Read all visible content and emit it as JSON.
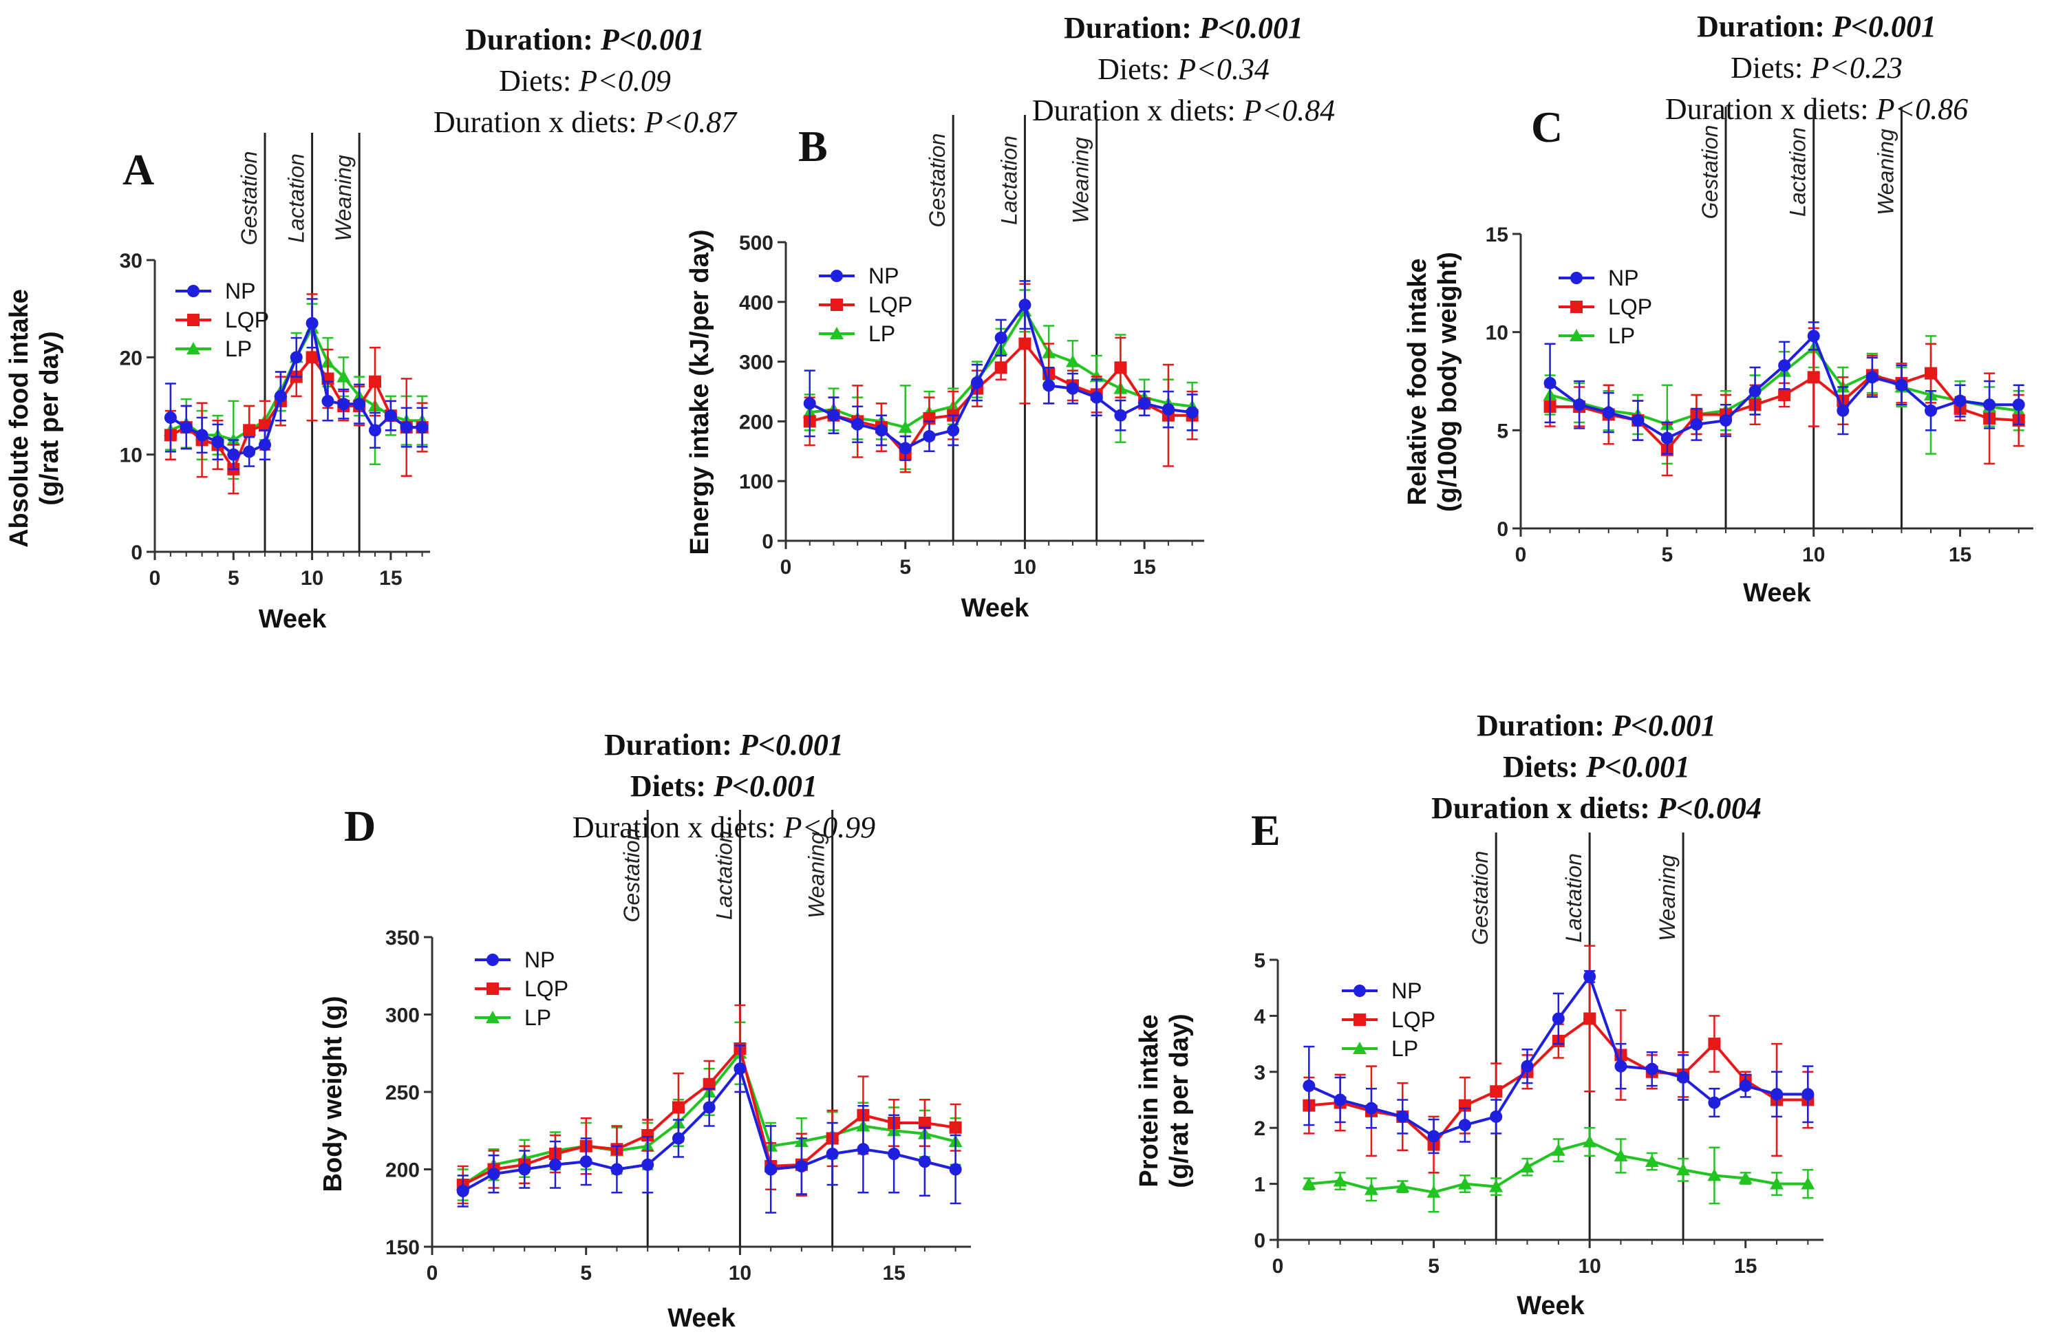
{
  "chart_data": [
    {
      "panel": "A",
      "type": "line",
      "stats": [
        {
          "label": "Duration: ",
          "value": "P<0.001",
          "bold": true
        },
        {
          "label": "Diets: ",
          "value": "P<0.09",
          "bold": false
        },
        {
          "label": "Duration x diets: ",
          "value": "P<0.87",
          "bold": false
        }
      ],
      "ylabel": [
        "Absolute food intake",
        "(g/rat per day)"
      ],
      "xlabel": "Week",
      "xlim": [
        0,
        17.5
      ],
      "ylim": [
        0,
        30
      ],
      "xticks": [
        0,
        5,
        10,
        15
      ],
      "yticks": [
        0,
        10,
        20,
        30
      ],
      "phases": [
        {
          "week": 7,
          "label": "Gestation"
        },
        {
          "week": 10,
          "label": "Lactation"
        },
        {
          "week": 13,
          "label": "Weaning"
        }
      ],
      "x": [
        1,
        2,
        3,
        4,
        5,
        6,
        7,
        8,
        9,
        10,
        11,
        12,
        13,
        14,
        15,
        16,
        17
      ],
      "series": [
        {
          "name": "NP",
          "color": "#1f1fe0",
          "marker": "circle",
          "values": [
            13.8,
            12.8,
            12,
            11.3,
            10,
            10.3,
            11,
            16,
            20,
            23.5,
            15.5,
            15.2,
            15.2,
            12.5,
            14,
            12.8,
            12.8
          ],
          "errors": [
            3.5,
            2.2,
            1.8,
            1.8,
            1.5,
            1.5,
            1.5,
            2.5,
            2,
            2.5,
            2,
            1.5,
            2,
            1.8,
            1.5,
            2,
            2
          ]
        },
        {
          "name": "LQP",
          "color": "#e81818",
          "marker": "square",
          "values": [
            12,
            12.8,
            11.5,
            11,
            8.5,
            12.5,
            13,
            15.5,
            18,
            20,
            17.8,
            15,
            15,
            17.5,
            14,
            12.8,
            12.8
          ],
          "errors": [
            2.5,
            2.2,
            3.8,
            2.5,
            2.5,
            2.5,
            2.5,
            2.5,
            2,
            6.5,
            3,
            1.5,
            2,
            3.5,
            1.5,
            5,
            2.5
          ]
        },
        {
          "name": "LP",
          "color": "#22c422",
          "marker": "triangle",
          "values": [
            12.5,
            13.2,
            12,
            12,
            11.5,
            12.5,
            13.5,
            16.5,
            20,
            23,
            19.5,
            18,
            16,
            15,
            14,
            13.5,
            13.5
          ],
          "errors": [
            2,
            2.5,
            2.5,
            2,
            4,
            2.5,
            2,
            2,
            2.5,
            2.5,
            2.5,
            2,
            2,
            6,
            2,
            2.5,
            2.5
          ]
        }
      ]
    },
    {
      "panel": "B",
      "type": "line",
      "stats": [
        {
          "label": "Duration: ",
          "value": "P<0.001",
          "bold": true
        },
        {
          "label": "Diets: ",
          "value": "P<0.34",
          "bold": false
        },
        {
          "label": "Duration x diets: ",
          "value": "P<0.84",
          "bold": false
        }
      ],
      "ylabel": [
        "Energy intake (kJ/per day)"
      ],
      "xlabel": "Week",
      "xlim": [
        0,
        17.5
      ],
      "ylim": [
        0,
        500
      ],
      "xticks": [
        0,
        5,
        10,
        15
      ],
      "yticks": [
        0,
        100,
        200,
        300,
        400,
        500
      ],
      "phases": [
        {
          "week": 7,
          "label": "Gestation"
        },
        {
          "week": 10,
          "label": "Lactation"
        },
        {
          "week": 13,
          "label": "Weaning"
        }
      ],
      "x": [
        1,
        2,
        3,
        4,
        5,
        6,
        7,
        8,
        9,
        10,
        11,
        12,
        13,
        14,
        15,
        16,
        17
      ],
      "series": [
        {
          "name": "NP",
          "color": "#1f1fe0",
          "marker": "circle",
          "values": [
            230,
            210,
            195,
            185,
            155,
            175,
            185,
            265,
            340,
            395,
            260,
            255,
            240,
            210,
            230,
            220,
            215
          ],
          "errors": [
            55,
            30,
            30,
            25,
            20,
            25,
            25,
            30,
            30,
            40,
            30,
            25,
            30,
            25,
            20,
            30,
            30
          ]
        },
        {
          "name": "LQP",
          "color": "#e81818",
          "marker": "square",
          "values": [
            200,
            210,
            200,
            190,
            145,
            205,
            210,
            255,
            290,
            330,
            280,
            260,
            245,
            290,
            230,
            210,
            210
          ],
          "errors": [
            40,
            30,
            60,
            40,
            30,
            35,
            40,
            30,
            20,
            100,
            50,
            25,
            30,
            50,
            20,
            85,
            40
          ]
        },
        {
          "name": "LP",
          "color": "#22c422",
          "marker": "triangle",
          "values": [
            215,
            220,
            205,
            200,
            190,
            215,
            225,
            270,
            320,
            385,
            315,
            300,
            275,
            255,
            240,
            230,
            225
          ],
          "errors": [
            30,
            35,
            35,
            30,
            70,
            35,
            30,
            30,
            35,
            35,
            45,
            35,
            35,
            90,
            30,
            40,
            40
          ]
        }
      ]
    },
    {
      "panel": "C",
      "type": "line",
      "stats": [
        {
          "label": "Duration: ",
          "value": "P<0.001",
          "bold": true
        },
        {
          "label": "Diets: ",
          "value": "P<0.23",
          "bold": false
        },
        {
          "label": "Duration x diets: ",
          "value": "P<0.86",
          "bold": false
        }
      ],
      "ylabel": [
        "Relative food intake",
        "(g/100g body weight)"
      ],
      "xlabel": "Week",
      "xlim": [
        0,
        17.5
      ],
      "ylim": [
        0,
        15
      ],
      "xticks": [
        0,
        5,
        10,
        15
      ],
      "yticks": [
        0,
        5,
        10,
        15
      ],
      "phases": [
        {
          "week": 7,
          "label": "Gestation"
        },
        {
          "week": 10,
          "label": "Lactation"
        },
        {
          "week": 13,
          "label": "Weaning"
        }
      ],
      "x": [
        1,
        2,
        3,
        4,
        5,
        6,
        7,
        8,
        9,
        10,
        11,
        12,
        13,
        14,
        15,
        16,
        17
      ],
      "series": [
        {
          "name": "NP",
          "color": "#1f1fe0",
          "marker": "circle",
          "values": [
            7.4,
            6.3,
            5.9,
            5.5,
            4.6,
            5.3,
            5.5,
            7,
            8.3,
            9.8,
            6,
            7.7,
            7.3,
            6,
            6.5,
            6.3,
            6.3
          ],
          "errors": [
            2,
            1.2,
            1,
            1,
            0.8,
            0.8,
            0.8,
            1.2,
            1.2,
            0.7,
            1.2,
            1,
            1,
            1,
            0.8,
            1.2,
            1
          ]
        },
        {
          "name": "LQP",
          "color": "#e81818",
          "marker": "square",
          "values": [
            6.2,
            6.2,
            5.8,
            5.5,
            4,
            5.8,
            5.8,
            6.3,
            6.8,
            7.7,
            6.5,
            7.8,
            7.4,
            7.9,
            6.1,
            5.6,
            5.5
          ],
          "errors": [
            1,
            1,
            1.5,
            1,
            1.3,
            1,
            1,
            1,
            0.6,
            2.5,
            1.2,
            1,
            1,
            1.5,
            0.6,
            2.3,
            1.3
          ]
        },
        {
          "name": "LP",
          "color": "#22c422",
          "marker": "triangle",
          "values": [
            6.8,
            6.4,
            6,
            5.8,
            5.3,
            5.8,
            6,
            6.8,
            8,
            9.2,
            7.2,
            7.9,
            7.2,
            6.8,
            6.5,
            6.2,
            6
          ],
          "errors": [
            1,
            1,
            1,
            1,
            2,
            1,
            1,
            1,
            1,
            1,
            1,
            1,
            1,
            3,
            1,
            1,
            1
          ]
        }
      ]
    },
    {
      "panel": "D",
      "type": "line",
      "stats": [
        {
          "label": "Duration: ",
          "value": "P<0.001",
          "bold": true
        },
        {
          "label": "Diets: ",
          "value": "P<0.001",
          "bold": true
        },
        {
          "label": "Duration x diets: ",
          "value": "P<0.99",
          "bold": false
        }
      ],
      "ylabel": [
        "Body weight (g)"
      ],
      "xlabel": "Week",
      "xlim": [
        0,
        17.5
      ],
      "ylim": [
        150,
        350
      ],
      "xticks": [
        0,
        5,
        10,
        15
      ],
      "yticks": [
        150,
        200,
        250,
        300,
        350
      ],
      "phases": [
        {
          "week": 7,
          "label": "Gestation"
        },
        {
          "week": 10,
          "label": "Lactation"
        },
        {
          "week": 13,
          "label": "Weaning"
        }
      ],
      "x": [
        1,
        2,
        3,
        4,
        5,
        6,
        7,
        8,
        9,
        10,
        11,
        12,
        13,
        14,
        15,
        16,
        17
      ],
      "series": [
        {
          "name": "NP",
          "color": "#1f1fe0",
          "marker": "circle",
          "values": [
            186,
            197,
            200,
            203,
            205,
            200,
            203,
            220,
            240,
            265,
            200,
            202,
            210,
            213,
            210,
            205,
            200
          ],
          "errors": [
            10,
            12,
            12,
            15,
            15,
            15,
            18,
            12,
            12,
            15,
            28,
            18,
            20,
            28,
            25,
            22,
            22
          ]
        },
        {
          "name": "LQP",
          "color": "#e81818",
          "marker": "square",
          "values": [
            190,
            200,
            203,
            210,
            215,
            213,
            222,
            240,
            255,
            278,
            202,
            203,
            220,
            235,
            230,
            230,
            227
          ],
          "errors": [
            12,
            12,
            12,
            12,
            18,
            15,
            10,
            22,
            15,
            28,
            15,
            20,
            18,
            25,
            15,
            15,
            15
          ]
        },
        {
          "name": "LP",
          "color": "#22c422",
          "marker": "triangle",
          "values": [
            190,
            203,
            207,
            212,
            215,
            212,
            215,
            230,
            250,
            275,
            215,
            218,
            222,
            228,
            225,
            223,
            218
          ],
          "errors": [
            10,
            10,
            12,
            12,
            15,
            15,
            15,
            15,
            15,
            20,
            15,
            15,
            15,
            15,
            15,
            15,
            15
          ]
        }
      ]
    },
    {
      "panel": "E",
      "type": "line",
      "stats": [
        {
          "label": "Duration: ",
          "value": "P<0.001",
          "bold": true
        },
        {
          "label": "Diets: ",
          "value": "P<0.001",
          "bold": true
        },
        {
          "label": "Duration x diets: ",
          "value": "P<0.004",
          "bold": true
        }
      ],
      "ylabel": [
        "Protein intake",
        "(g/rat per day)"
      ],
      "xlabel": "Week",
      "xlim": [
        0,
        17.5
      ],
      "ylim": [
        0,
        5
      ],
      "xticks": [
        0,
        5,
        10,
        15
      ],
      "yticks": [
        0,
        1,
        2,
        3,
        4,
        5
      ],
      "phases": [
        {
          "week": 7,
          "label": "Gestation"
        },
        {
          "week": 10,
          "label": "Lactation"
        },
        {
          "week": 13,
          "label": "Weaning"
        }
      ],
      "x": [
        1,
        2,
        3,
        4,
        5,
        6,
        7,
        8,
        9,
        10,
        11,
        12,
        13,
        14,
        15,
        16,
        17
      ],
      "series": [
        {
          "name": "NP",
          "color": "#1f1fe0",
          "marker": "circle",
          "values": [
            2.75,
            2.5,
            2.35,
            2.2,
            1.85,
            2.05,
            2.2,
            3.1,
            3.95,
            4.7,
            3.1,
            3.05,
            2.9,
            2.45,
            2.75,
            2.6,
            2.6
          ],
          "errors": [
            0.7,
            0.4,
            0.35,
            0.3,
            0.3,
            0.3,
            0.3,
            0.3,
            0.45,
            0.1,
            0.4,
            0.3,
            0.4,
            0.25,
            0.2,
            0.4,
            0.5
          ]
        },
        {
          "name": "LQP",
          "color": "#e81818",
          "marker": "square",
          "values": [
            2.4,
            2.45,
            2.3,
            2.2,
            1.7,
            2.4,
            2.65,
            3,
            3.55,
            3.95,
            3.3,
            3,
            2.95,
            3.5,
            2.85,
            2.5,
            2.5
          ],
          "errors": [
            0.5,
            0.5,
            0.8,
            0.6,
            0.5,
            0.5,
            0.5,
            0.3,
            0.3,
            1.3,
            0.8,
            0.3,
            0.4,
            0.5,
            0.15,
            1,
            0.5
          ]
        },
        {
          "name": "LP",
          "color": "#22c422",
          "marker": "triangle",
          "values": [
            1,
            1.05,
            0.9,
            0.95,
            0.85,
            1,
            0.95,
            1.3,
            1.6,
            1.75,
            1.5,
            1.4,
            1.25,
            1.15,
            1.1,
            1,
            1
          ],
          "errors": [
            0.1,
            0.15,
            0.2,
            0.1,
            0.35,
            0.15,
            0.15,
            0.15,
            0.2,
            0.25,
            0.3,
            0.15,
            0.2,
            0.5,
            0.1,
            0.2,
            0.25
          ]
        }
      ]
    }
  ]
}
